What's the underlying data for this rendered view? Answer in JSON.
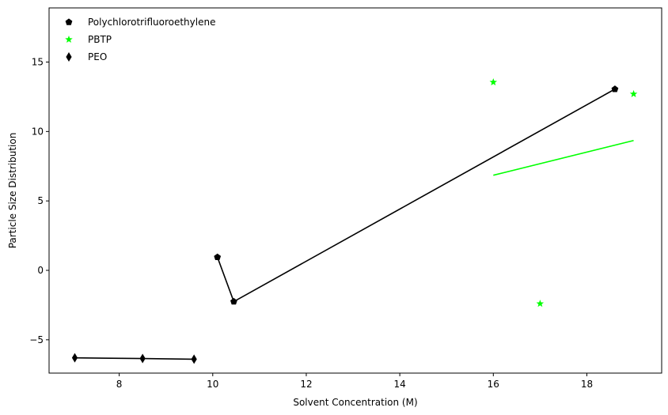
{
  "chart_data": {
    "type": "scatter",
    "title": "",
    "xlabel": "Solvent Concentration (M)",
    "ylabel": "Particle Size Distribution",
    "xlim": [
      6.5,
      19.6
    ],
    "ylim": [
      -7.4,
      18.9
    ],
    "xticks": [
      8,
      10,
      12,
      14,
      16,
      18
    ],
    "yticks": [
      -5,
      0,
      5,
      10,
      15
    ],
    "grid": false,
    "legend_position": "upper-left",
    "series": [
      {
        "name": "Polychlorotrifluoroethylene",
        "marker": "pentagon",
        "color": "#000000",
        "points": [
          [
            10.1,
            0.95
          ],
          [
            10.45,
            -2.25
          ],
          [
            18.6,
            13.05
          ]
        ],
        "line": [
          [
            10.1,
            0.95
          ],
          [
            10.45,
            -2.25
          ],
          [
            18.6,
            13.05
          ]
        ],
        "line_color": "#000000"
      },
      {
        "name": "PBTP",
        "marker": "star",
        "color": "#00ff00",
        "points": [
          [
            16.0,
            13.55
          ],
          [
            17.0,
            -2.4
          ],
          [
            19.0,
            12.7
          ]
        ],
        "line": [
          [
            16.0,
            6.85
          ],
          [
            19.0,
            9.35
          ]
        ],
        "line_color": "#00ff00"
      },
      {
        "name": "PEO",
        "marker": "thin-diamond",
        "color": "#000000",
        "points": [
          [
            7.05,
            -6.3
          ],
          [
            8.5,
            -6.35
          ],
          [
            9.6,
            -6.4
          ]
        ],
        "line": [
          [
            7.05,
            -6.3
          ],
          [
            8.5,
            -6.35
          ],
          [
            9.6,
            -6.4
          ]
        ],
        "line_color": "#000000"
      }
    ]
  }
}
